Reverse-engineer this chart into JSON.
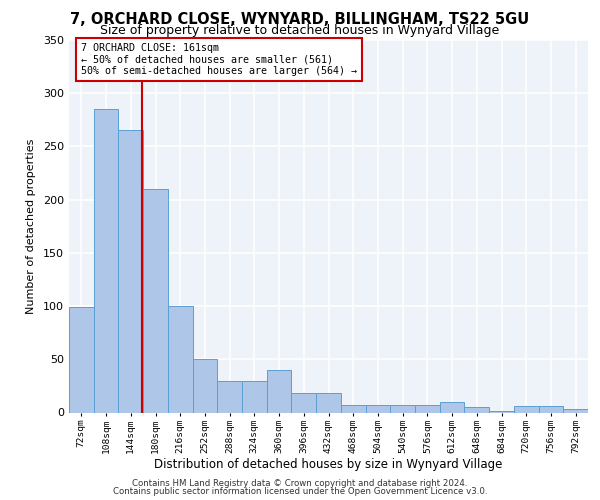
{
  "title1": "7, ORCHARD CLOSE, WYNYARD, BILLINGHAM, TS22 5GU",
  "title2": "Size of property relative to detached houses in Wynyard Village",
  "xlabel": "Distribution of detached houses by size in Wynyard Village",
  "ylabel": "Number of detached properties",
  "footer1": "Contains HM Land Registry data © Crown copyright and database right 2024.",
  "footer2": "Contains public sector information licensed under the Open Government Licence v3.0.",
  "annotation_line1": "7 ORCHARD CLOSE: 161sqm",
  "annotation_line2": "← 50% of detached houses are smaller (561)",
  "annotation_line3": "50% of semi-detached houses are larger (564) →",
  "bar_color": "#aec6e8",
  "bar_edge_color": "#5a9fd4",
  "red_line_color": "#cc0000",
  "categories": [
    72,
    108,
    144,
    180,
    216,
    252,
    288,
    324,
    360,
    396,
    432,
    468,
    504,
    540,
    576,
    612,
    648,
    684,
    720,
    756,
    792
  ],
  "values": [
    99,
    285,
    265,
    210,
    100,
    50,
    30,
    30,
    40,
    18,
    18,
    7,
    7,
    7,
    7,
    10,
    5,
    1,
    6,
    6,
    3
  ],
  "ylim": [
    0,
    350
  ],
  "yticks": [
    0,
    50,
    100,
    150,
    200,
    250,
    300,
    350
  ],
  "bin_width": 36,
  "background_color": "#eef2f9",
  "grid_color": "#ffffff",
  "annotation_box_color": "#ffffff",
  "annotation_box_edge": "#cc0000"
}
